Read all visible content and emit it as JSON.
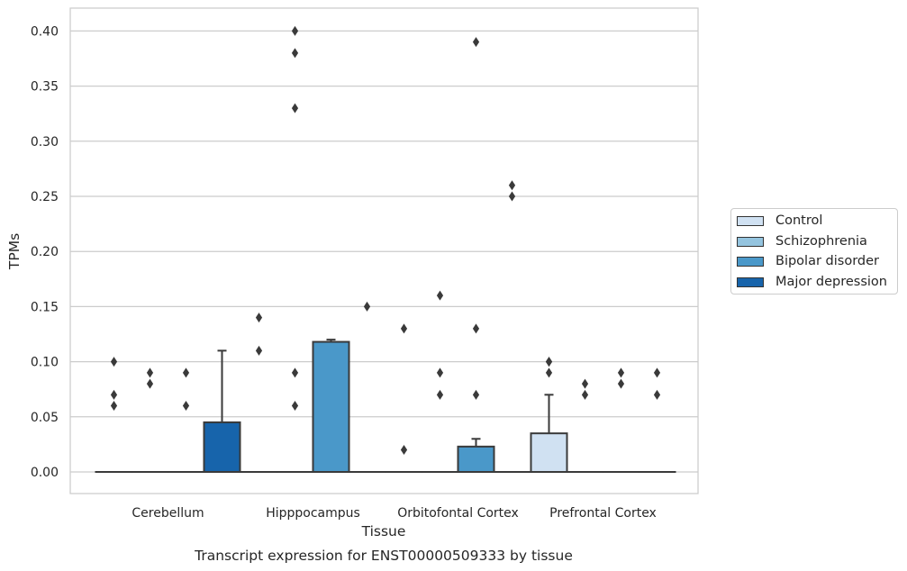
{
  "chart_data": {
    "type": "box",
    "title": "",
    "xlabel": "Tissue",
    "ylabel": "TPMs",
    "caption": "Transcript expression for ENST00000509333 by tissue",
    "ylim": [
      -0.019,
      0.42
    ],
    "yticks": [
      "0.00",
      "0.05",
      "0.10",
      "0.15",
      "0.20",
      "0.25",
      "0.30",
      "0.35",
      "0.40"
    ],
    "grid": true,
    "legend_position": "right",
    "categories": [
      "Cerebellum",
      "Hipppocampus",
      "Orbitofontal Cortex",
      "Prefrontal Cortex"
    ],
    "series": [
      {
        "name": "Control",
        "color": "#d0e1f2"
      },
      {
        "name": "Schizophrenia",
        "color": "#94c4df"
      },
      {
        "name": "Bipolar disorder",
        "color": "#4a98c9"
      },
      {
        "name": "Major depression",
        "color": "#1764ab"
      }
    ],
    "boxes": [
      {
        "category": 0,
        "series": 0,
        "q1": 0,
        "median": 0,
        "q3": 0,
        "whislo": 0,
        "whishi": 0,
        "fliers": [
          0.06,
          0.07,
          0.1
        ]
      },
      {
        "category": 0,
        "series": 1,
        "q1": 0,
        "median": 0,
        "q3": 0,
        "whislo": 0,
        "whishi": 0,
        "fliers": [
          0.08,
          0.09
        ]
      },
      {
        "category": 0,
        "series": 2,
        "q1": 0,
        "median": 0,
        "q3": 0,
        "whislo": 0,
        "whishi": 0,
        "fliers": [
          0.06,
          0.09
        ]
      },
      {
        "category": 0,
        "series": 3,
        "q1": 0,
        "median": 0,
        "q3": 0.045,
        "whislo": 0,
        "whishi": 0.11,
        "fliers": []
      },
      {
        "category": 1,
        "series": 0,
        "q1": 0,
        "median": 0,
        "q3": 0,
        "whislo": 0,
        "whishi": 0,
        "fliers": [
          0.11,
          0.14
        ]
      },
      {
        "category": 1,
        "series": 1,
        "q1": 0,
        "median": 0,
        "q3": 0,
        "whislo": 0,
        "whishi": 0,
        "fliers": [
          0.06,
          0.09,
          0.33,
          0.38,
          0.4
        ]
      },
      {
        "category": 1,
        "series": 2,
        "q1": 0,
        "median": 0,
        "q3": 0.118,
        "whislo": 0,
        "whishi": 0.12,
        "fliers": []
      },
      {
        "category": 1,
        "series": 3,
        "q1": 0,
        "median": 0,
        "q3": 0,
        "whislo": 0,
        "whishi": 0,
        "fliers": [
          0.15
        ]
      },
      {
        "category": 2,
        "series": 0,
        "q1": 0,
        "median": 0,
        "q3": 0,
        "whislo": 0,
        "whishi": 0,
        "fliers": [
          0.02,
          0.13
        ]
      },
      {
        "category": 2,
        "series": 1,
        "q1": 0,
        "median": 0,
        "q3": 0,
        "whislo": 0,
        "whishi": 0,
        "fliers": [
          0.07,
          0.09,
          0.16
        ]
      },
      {
        "category": 2,
        "series": 2,
        "q1": 0,
        "median": 0,
        "q3": 0.023,
        "whislo": 0,
        "whishi": 0.03,
        "fliers": [
          0.07,
          0.13,
          0.39
        ]
      },
      {
        "category": 2,
        "series": 3,
        "q1": 0,
        "median": 0,
        "q3": 0,
        "whislo": 0,
        "whishi": 0,
        "fliers": [
          0.25,
          0.26
        ]
      },
      {
        "category": 3,
        "series": 0,
        "q1": 0,
        "median": 0,
        "q3": 0.035,
        "whislo": 0,
        "whishi": 0.07,
        "fliers": [
          0.09,
          0.1,
          0.1
        ]
      },
      {
        "category": 3,
        "series": 1,
        "q1": 0,
        "median": 0,
        "q3": 0,
        "whislo": 0,
        "whishi": 0,
        "fliers": [
          0.07,
          0.08
        ]
      },
      {
        "category": 3,
        "series": 2,
        "q1": 0,
        "median": 0,
        "q3": 0,
        "whislo": 0,
        "whishi": 0,
        "fliers": [
          0.08,
          0.09
        ]
      },
      {
        "category": 3,
        "series": 3,
        "q1": 0,
        "median": 0,
        "q3": 0,
        "whislo": 0,
        "whishi": 0,
        "fliers": [
          0.07,
          0.09
        ]
      }
    ]
  }
}
